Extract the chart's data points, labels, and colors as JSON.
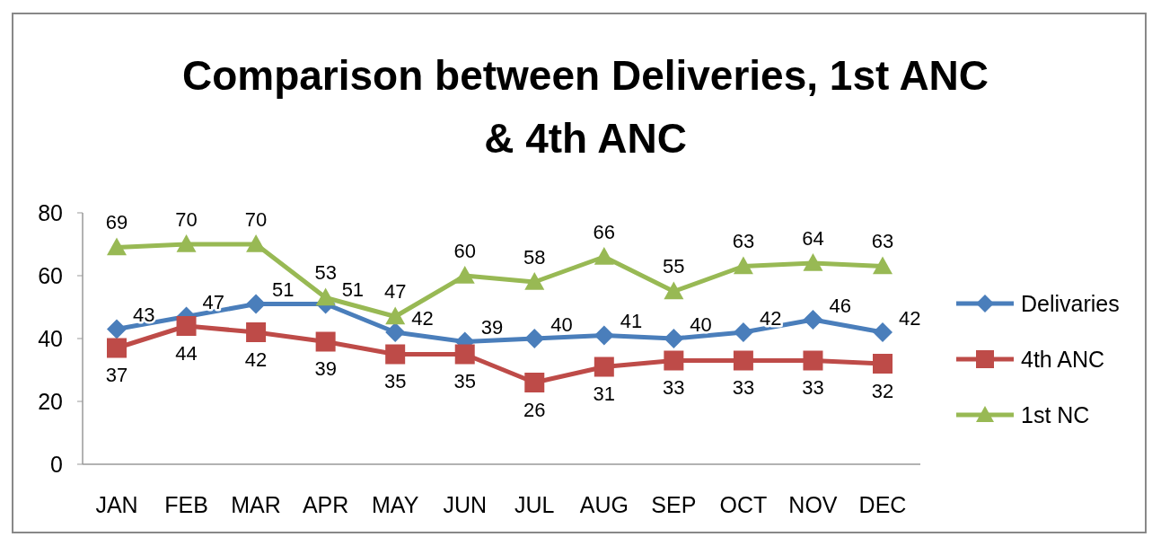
{
  "chart_data": {
    "type": "line",
    "title": "Comparison between Deliveries, 1st ANC & 4th ANC",
    "categories": [
      "JAN",
      "FEB",
      "MAR",
      "APR",
      "MAY",
      "JUN",
      "JUL",
      "AUG",
      "SEP",
      "OCT",
      "NOV",
      "DEC"
    ],
    "series": [
      {
        "name": "Delivaries",
        "color": "#4a7ebb",
        "marker": "diamond",
        "values": [
          43,
          47,
          51,
          51,
          42,
          39,
          40,
          41,
          40,
          42,
          46,
          42
        ]
      },
      {
        "name": "4th ANC",
        "color": "#be4b48",
        "marker": "square",
        "values": [
          37,
          44,
          42,
          39,
          35,
          35,
          26,
          31,
          33,
          33,
          33,
          32
        ]
      },
      {
        "name": "1st NC",
        "color": "#98b954",
        "marker": "triangle",
        "values": [
          69,
          70,
          70,
          53,
          47,
          60,
          58,
          66,
          55,
          63,
          64,
          63
        ]
      }
    ],
    "ylim": [
      0,
      80
    ],
    "yticks": [
      0,
      20,
      40,
      60,
      80
    ],
    "grid": false,
    "legend": "right",
    "data_labels": true
  }
}
